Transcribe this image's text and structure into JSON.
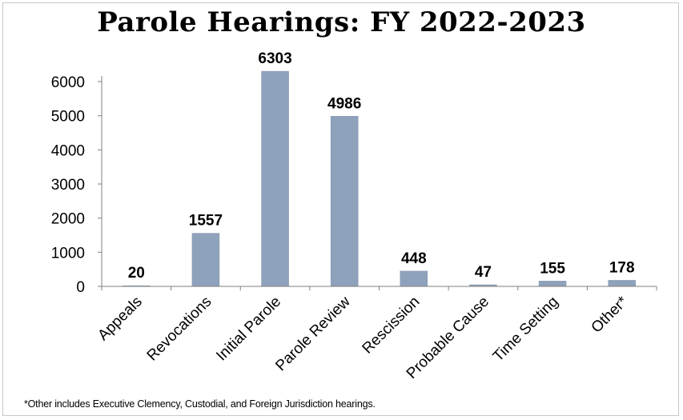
{
  "chart_data": {
    "type": "bar",
    "title": "Parole Hearings: FY 2022-2023",
    "categories": [
      "Appeals",
      "Revocations",
      "Initial Parole",
      "Parole Review",
      "Rescission",
      "Probable Cause",
      "Time Setting",
      "Other*"
    ],
    "values": [
      20,
      1557,
      6303,
      4986,
      448,
      47,
      155,
      178
    ],
    "y_ticks": [
      0,
      1000,
      2000,
      3000,
      4000,
      5000,
      6000
    ],
    "ylim": [
      0,
      6000
    ],
    "grid": false,
    "legend": "none",
    "data_labels": true,
    "bar_color": "#8fa2bb",
    "footnote": "*Other includes Executive Clemency, Custodial, and Foreign Jurisdiction hearings."
  }
}
